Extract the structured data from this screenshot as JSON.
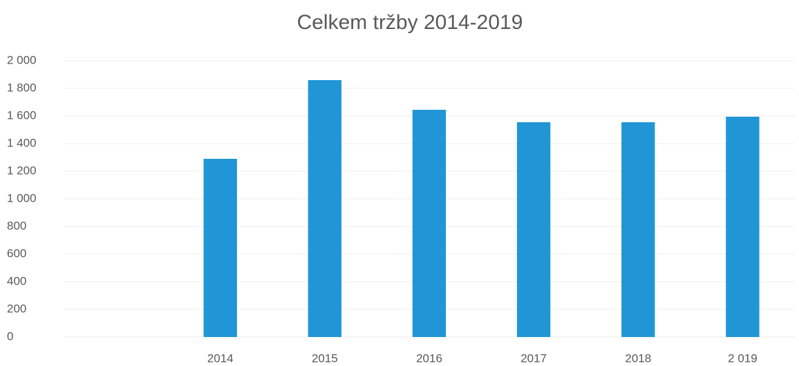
{
  "chart_data": {
    "type": "bar",
    "title": "Celkem tržby 2014-2019",
    "categories": [
      null,
      "2014",
      "2015",
      "2016",
      "2017",
      "2018",
      "2 019"
    ],
    "values": [
      null,
      1290,
      1860,
      1645,
      1555,
      1555,
      1595
    ],
    "color": "#2196d6",
    "ylim": [
      0,
      2000
    ],
    "yticks": [
      0,
      200,
      400,
      600,
      800,
      {
        "value": 1000,
        "label": "1 000"
      },
      {
        "value": 1200,
        "label": "1 200"
      },
      {
        "value": 1400,
        "label": "1 400"
      },
      {
        "value": 1600,
        "label": "1 600"
      },
      {
        "value": 1800,
        "label": "1 800"
      },
      {
        "value": 2000,
        "label": "2 000"
      }
    ],
    "grid": true
  }
}
